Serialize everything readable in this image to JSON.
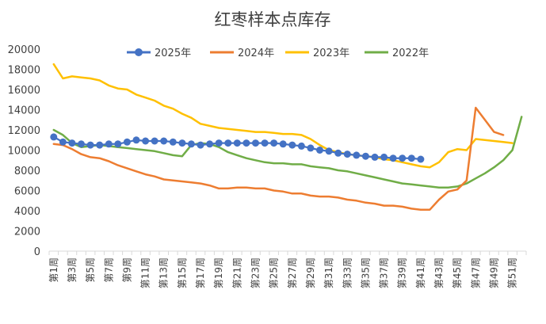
{
  "chart_data": {
    "type": "line",
    "title": "红枣样本点库存",
    "xlabel": "",
    "ylabel": "",
    "ylim": [
      0,
      20000
    ],
    "yticks": [
      0,
      2000,
      4000,
      6000,
      8000,
      10000,
      12000,
      14000,
      16000,
      18000,
      20000
    ],
    "grid": false,
    "legend_position": "top",
    "week_count": 52,
    "xtick_labels": [
      "第1周",
      "第3周",
      "第5周",
      "第7周",
      "第9周",
      "第11周",
      "第13周",
      "第15周",
      "第17周",
      "第19周",
      "第21周",
      "第23周",
      "第25周",
      "第27周",
      "第29周",
      "第31周",
      "第33周",
      "第35周",
      "第37周",
      "第39周",
      "第41周",
      "第43周",
      "第45周",
      "第47周",
      "第49周",
      "第51周"
    ],
    "series": [
      {
        "name": "2025年",
        "color": "#4472c4",
        "markers": true,
        "values": [
          11300,
          10800,
          10700,
          10600,
          10500,
          10500,
          10600,
          10600,
          10800,
          11000,
          10900,
          10900,
          10900,
          10800,
          10700,
          10600,
          10500,
          10600,
          10700,
          10700,
          10700,
          10700,
          10700,
          10700,
          10700,
          10600,
          10500,
          10400,
          10200,
          10000,
          9900,
          9700,
          9600,
          9500,
          9400,
          9300,
          9300,
          9200,
          9200,
          9200,
          9100
        ]
      },
      {
        "name": "2024年",
        "color": "#ed7d31",
        "markers": false,
        "values": [
          10600,
          10500,
          10100,
          9600,
          9300,
          9200,
          8900,
          8500,
          8200,
          7900,
          7600,
          7400,
          7100,
          7000,
          6900,
          6800,
          6700,
          6500,
          6200,
          6200,
          6300,
          6300,
          6200,
          6200,
          6000,
          5900,
          5700,
          5700,
          5500,
          5400,
          5400,
          5300,
          5100,
          5000,
          4800,
          4700,
          4500,
          4500,
          4400,
          4200,
          4100,
          4100,
          5100,
          5900,
          6100,
          7000,
          14200,
          13000,
          11800,
          11500
        ]
      },
      {
        "name": "2023年",
        "color": "#ffc000",
        "markers": false,
        "values": [
          18500,
          17100,
          17300,
          17200,
          17100,
          16900,
          16400,
          16100,
          16000,
          15500,
          15200,
          14900,
          14400,
          14100,
          13600,
          13200,
          12600,
          12400,
          12200,
          12100,
          12000,
          11900,
          11800,
          11800,
          11700,
          11600,
          11600,
          11500,
          11100,
          10500,
          10000,
          9800,
          9600,
          9500,
          9400,
          9300,
          9100,
          9000,
          8800,
          8600,
          8400,
          8300,
          8800,
          9800,
          10100,
          10000,
          11100,
          11000,
          10900,
          10800,
          10700
        ]
      },
      {
        "name": "2022年",
        "color": "#70ad47",
        "markers": false,
        "values": [
          12000,
          11500,
          10700,
          10300,
          10400,
          10500,
          10400,
          10300,
          10200,
          10100,
          10000,
          9900,
          9700,
          9500,
          9400,
          10500,
          10700,
          10600,
          10300,
          9800,
          9500,
          9200,
          9000,
          8800,
          8700,
          8700,
          8600,
          8600,
          8400,
          8300,
          8200,
          8000,
          7900,
          7700,
          7500,
          7300,
          7100,
          6900,
          6700,
          6600,
          6500,
          6400,
          6300,
          6300,
          6400,
          6700,
          7200,
          7700,
          8300,
          9000,
          10000,
          13300
        ]
      }
    ]
  }
}
